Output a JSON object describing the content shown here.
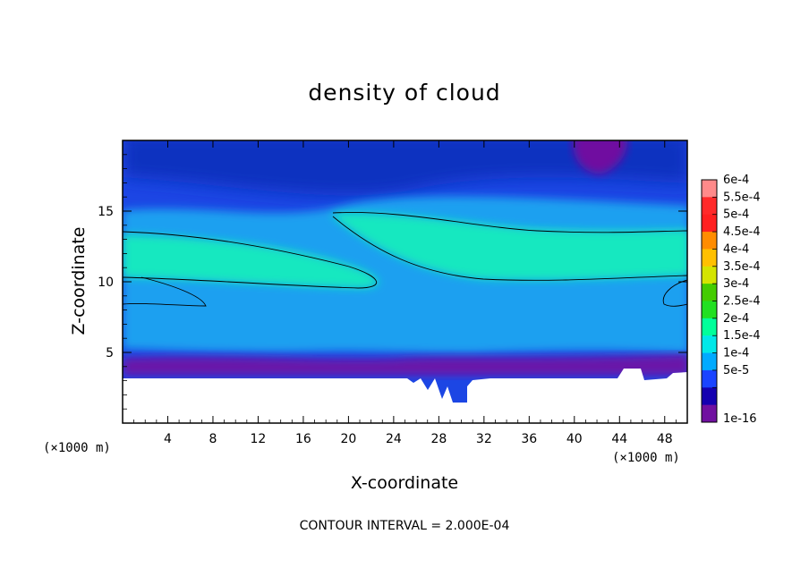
{
  "chart_data": {
    "type": "heatmap",
    "title": "density of cloud",
    "xlabel": "X-coordinate",
    "ylabel": "Z-coordinate",
    "x_unit_label": "(×1000 m)",
    "x_unit_label_right": "(×1000 m)",
    "xlim": [
      0,
      50
    ],
    "ylim": [
      0,
      20
    ],
    "x_ticks": [
      4,
      8,
      12,
      16,
      20,
      24,
      28,
      32,
      36,
      40,
      44,
      48
    ],
    "x_tick_labels": [
      "4",
      "8",
      "12",
      "16",
      "20",
      "24",
      "28",
      "32",
      "36",
      "40",
      "44",
      "48"
    ],
    "y_ticks": [
      5,
      10,
      15
    ],
    "y_tick_labels": [
      "5",
      "10",
      "15"
    ],
    "footnote": "CONTOUR INTERVAL = 2.000E-04",
    "contour_interval": 0.0002,
    "colorbar": {
      "labels": [
        "6e-4",
        "5.5e-4",
        "5e-4",
        "4.5e-4",
        "4e-4",
        "3.5e-4",
        "3e-4",
        "2.5e-4",
        "2e-4",
        "1.5e-4",
        "1e-4",
        "5e-5",
        "1e-16"
      ],
      "values": [
        0.0006,
        0.00055,
        0.0005,
        0.00045,
        0.0004,
        0.00035,
        0.0003,
        0.00025,
        0.0002,
        0.00015,
        0.0001,
        5e-05,
        1e-16
      ],
      "colors": [
        "#ff8a8a",
        "#ff2a2a",
        "#ff2020",
        "#ff8c00",
        "#ffc000",
        "#d4e400",
        "#44cc00",
        "#22e022",
        "#00ff9a",
        "#00e8e8",
        "#00aaff",
        "#1a44ff",
        "#1400b0",
        "#7010a0"
      ]
    },
    "fields": {
      "background": "#1c46e4",
      "upper_band": "#1030c0",
      "purple_pocket": "#7010a0",
      "mid_band": "#1aa0f0",
      "core_band": "#18e8c0",
      "ground_layer": "#6a14a8",
      "no_data": "#ffffff",
      "contour_line": "#000000"
    }
  }
}
